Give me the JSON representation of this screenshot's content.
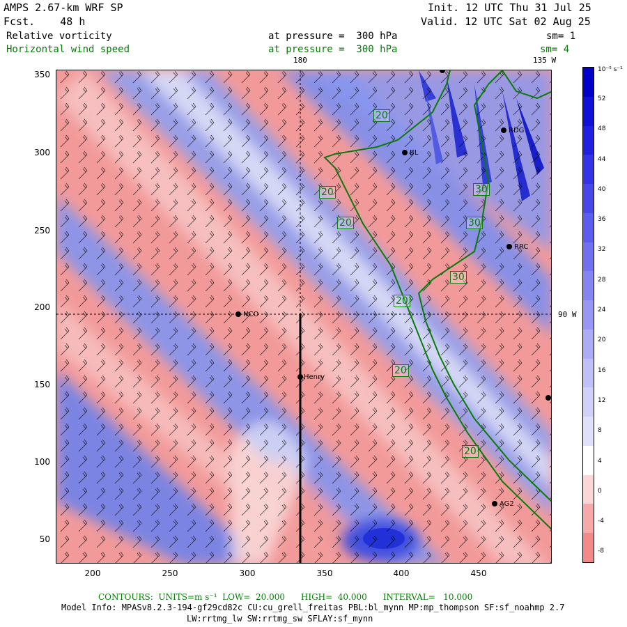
{
  "header": {
    "model": "AMPS 2.67-km WRF SP",
    "fcst": "Fcst.    48 h",
    "init": "Init. 12 UTC Thu 31 Jul 25",
    "valid": "Valid. 12 UTC Sat 02 Aug 25",
    "field1_name": "Relative vorticity",
    "field1_pressure": "at pressure =  300 hPa",
    "field1_sm": "sm= 1",
    "field2_name": "Horizontal wind speed",
    "field2_pressure": "at pressure =  300 hPa",
    "field2_sm": "sm= 4"
  },
  "map_labels": {
    "lon_180": "180",
    "lon_135w": "135 W",
    "lat_90w": "90 W"
  },
  "axes": {
    "y_ticks": [
      "350",
      "300",
      "250",
      "200",
      "150",
      "100",
      "50"
    ],
    "x_ticks": [
      "200",
      "250",
      "300",
      "350",
      "400",
      "450"
    ]
  },
  "colorbar": {
    "unit": "10⁻⁵ s⁻¹",
    "labels": [
      "52",
      "48",
      "44",
      "40",
      "36",
      "32",
      "28",
      "24",
      "20",
      "16",
      "12",
      "8",
      "4",
      "0",
      "-4",
      "-8"
    ],
    "colors": [
      "#0000c8",
      "#1010d6",
      "#2020e0",
      "#3434e6",
      "#4848ea",
      "#5c5cee",
      "#7070f0",
      "#8484f2",
      "#9898f4",
      "#acacf6",
      "#c0c0f8",
      "#d0d0fa",
      "#e0e0fc",
      "#ffffff",
      "#fbd6d6",
      "#f7a8a8",
      "#f28a8a"
    ]
  },
  "sites": [
    {
      "name": "RDG"
    },
    {
      "name": "BL"
    },
    {
      "name": "RRC"
    },
    {
      "name": "NCO"
    },
    {
      "name": "Henry"
    },
    {
      "name": "AG2"
    }
  ],
  "contour_labels": [
    "20",
    "20",
    "20",
    "30",
    "30",
    "30",
    "20",
    "20",
    "20"
  ],
  "footer": {
    "contours": "CONTOURS:  UNITS=m s⁻¹  LOW=  20.000      HIGH=  40.000      INTERVAL=   10.000",
    "model_info": "Model Info: MPASv8.2.3-194-gf29cd82c CU:cu_grell_freitas PBL:bl_mynn MP:mp_thompson SF:sf_noahmp 2.7",
    "model_info2": "LW:rrtmg_lw SW:rrtmg_sw SFLAY:sf_mynn"
  },
  "chart_data": {
    "type": "heatmap",
    "title": "Relative vorticity",
    "x_ticks": [
      200,
      250,
      300,
      350,
      400,
      450
    ],
    "y_ticks": [
      50,
      100,
      150,
      200,
      250,
      300,
      350
    ],
    "colorbar_range": [
      -8,
      52
    ],
    "contour_field": "Horizontal wind speed",
    "contour_levels": [
      20,
      30,
      40
    ]
  }
}
